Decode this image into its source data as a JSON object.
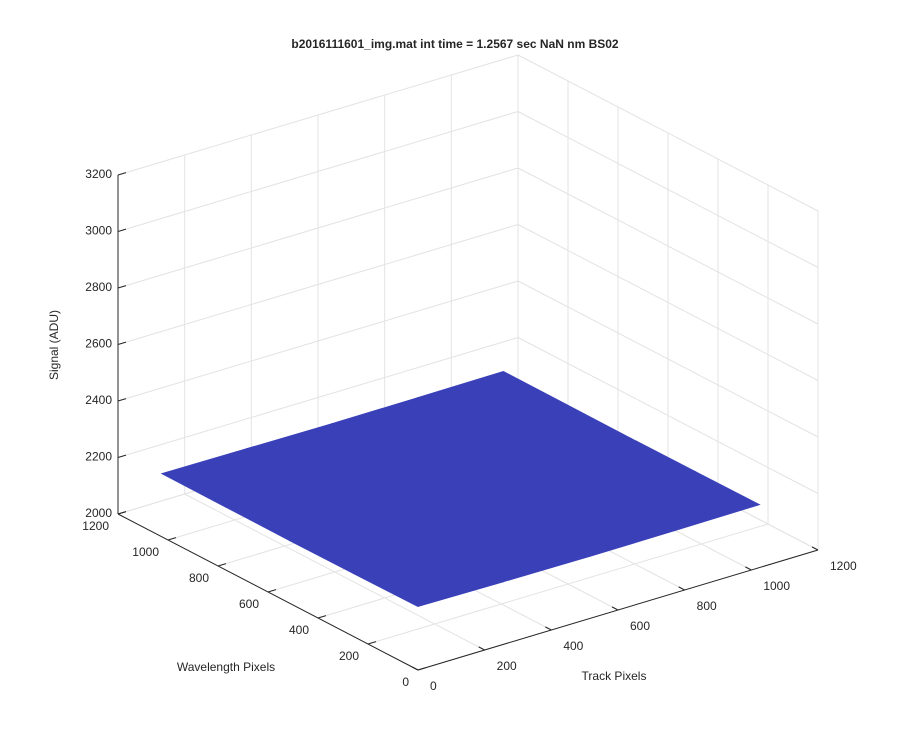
{
  "chart_data": {
    "type": "surface",
    "title": "b2016111601_img.mat int time = 1.2567 sec  NaN nm BS02",
    "xlabel": "Track Pixels",
    "ylabel": "Wavelength Pixels",
    "zlabel": "Signal (ADU)",
    "x": [
      0,
      256,
      512,
      768,
      1024
    ],
    "y": [
      0,
      256,
      512,
      768,
      1024
    ],
    "z": [
      [
        2225,
        2222,
        2220,
        2221,
        2223
      ],
      [
        2223,
        2220,
        2219,
        2220,
        2222
      ],
      [
        2222,
        2219,
        2218,
        2219,
        2221
      ],
      [
        2223,
        2220,
        2219,
        2220,
        2222
      ],
      [
        2224,
        2222,
        2220,
        2221,
        2223
      ]
    ],
    "color": "#3a40b8",
    "xlim": [
      0,
      1200
    ],
    "ylim": [
      0,
      1200
    ],
    "zlim": [
      2000,
      3200
    ],
    "xticks": [
      0,
      200,
      400,
      600,
      800,
      1000,
      1200
    ],
    "yticks": [
      0,
      200,
      400,
      600,
      800,
      1000,
      1200
    ],
    "zticks": [
      2000,
      2200,
      2400,
      2600,
      2800,
      3000,
      3200
    ],
    "grid": true
  }
}
